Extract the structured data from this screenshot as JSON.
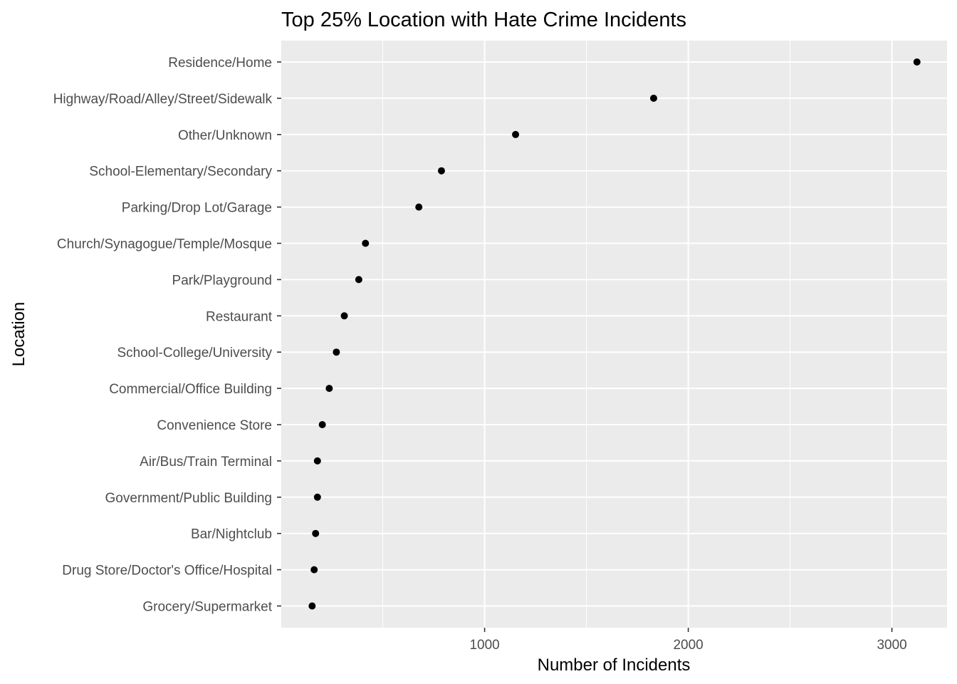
{
  "chart_data": {
    "type": "scatter",
    "title": "Top 25% Location with Hate Crime Incidents",
    "xlabel": "Number of Incidents",
    "ylabel": "Location",
    "xlim": [
      0,
      3270
    ],
    "xticks": [
      1000,
      2000,
      3000
    ],
    "xtick_labels": [
      "1000",
      "2000",
      "3000"
    ],
    "categories": [
      "Residence/Home",
      "Highway/Road/Alley/Street/Sidewalk",
      "Other/Unknown",
      "School-Elementary/Secondary",
      "Parking/Drop Lot/Garage",
      "Church/Synagogue/Temple/Mosque",
      "Park/Playground",
      "Restaurant",
      "School-College/University",
      "Commercial/Office Building",
      "Convenience Store",
      "Air/Bus/Train Terminal",
      "Government/Public Building",
      "Bar/Nightclub",
      "Drug Store/Doctor's Office/Hospital",
      "Grocery/Supermarket"
    ],
    "values": [
      3123,
      1830,
      1152,
      788,
      677,
      415,
      382,
      311,
      272,
      237,
      203,
      179,
      179,
      170,
      163,
      153
    ],
    "grid": true,
    "panel_background": "#ebebeb",
    "grid_color": "#ffffff",
    "point_color": "#000000",
    "legend": "none"
  }
}
